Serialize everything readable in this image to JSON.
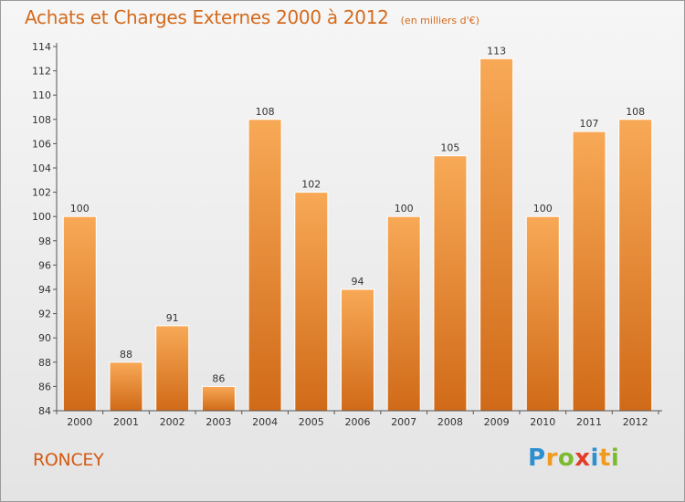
{
  "title": "Achats et Charges Externes 2000 à 2012",
  "subtitle": "(en milliers d'€)",
  "commune": "RONCEY",
  "logo": {
    "text": "Proxiti",
    "letters": [
      {
        "ch": "P",
        "color": "#2e8fd0"
      },
      {
        "ch": "r",
        "color": "#f29a1f"
      },
      {
        "ch": "o",
        "color": "#7dbb2e"
      },
      {
        "ch": "x",
        "color": "#e33c2a"
      },
      {
        "ch": "i",
        "color": "#2e8fd0"
      },
      {
        "ch": "t",
        "color": "#f29a1f"
      },
      {
        "ch": "i",
        "color": "#7dbb2e"
      }
    ]
  },
  "colors": {
    "bar_light": "#f8a956",
    "bar_dark": "#d06a18",
    "title": "#d46a1c"
  },
  "chart_data": {
    "type": "bar",
    "categories": [
      "2000",
      "2001",
      "2002",
      "2003",
      "2004",
      "2005",
      "2006",
      "2007",
      "2008",
      "2009",
      "2010",
      "2011",
      "2012"
    ],
    "values": [
      100,
      88,
      91,
      86,
      108,
      102,
      94,
      100,
      105,
      113,
      100,
      107,
      108
    ],
    "ylim": [
      84,
      114
    ],
    "yticks": [
      84,
      86,
      88,
      90,
      92,
      94,
      96,
      98,
      100,
      102,
      104,
      106,
      108,
      110,
      112,
      114
    ],
    "grid": false,
    "data_labels": true
  }
}
